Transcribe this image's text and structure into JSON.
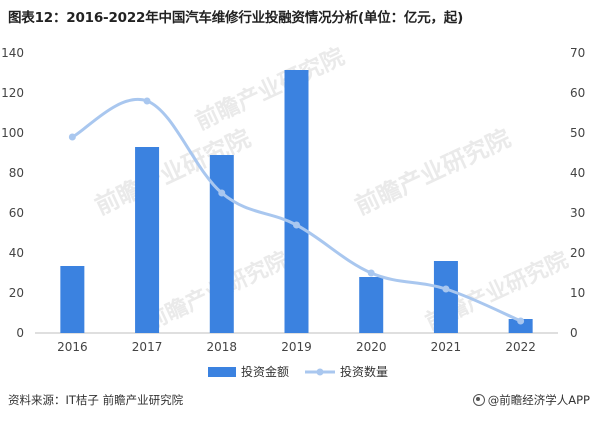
{
  "title": "图表12：2016-2022年中国汽车维修行业投融资情况分析(单位：亿元，起)",
  "source": "资料来源：IT桔子 前瞻产业研究院",
  "brand": "@前瞻经济学人APP",
  "watermark": "前瞻产业研究院",
  "colors": {
    "bar": "#3b82e0",
    "line": "#a9c7ef",
    "axis": "#bfbfbf",
    "text": "#444444"
  },
  "chart_data": {
    "type": "bar",
    "categories": [
      "2016",
      "2017",
      "2018",
      "2019",
      "2020",
      "2021",
      "2022"
    ],
    "series": [
      {
        "name": "投资金额",
        "type": "bar",
        "axis": "left",
        "values": [
          33.5,
          93,
          89,
          131.5,
          28,
          36,
          7
        ]
      },
      {
        "name": "投资数量",
        "type": "line",
        "axis": "right",
        "smooth": true,
        "values": [
          49,
          58,
          35,
          27,
          15,
          11,
          3
        ]
      }
    ],
    "y_left": {
      "min": 0,
      "max": 140,
      "ticks": [
        "0",
        "20",
        "40",
        "60",
        "80",
        "100",
        "120",
        "140"
      ]
    },
    "y_right": {
      "min": 0,
      "max": 70,
      "ticks": [
        "0",
        "10",
        "20",
        "30",
        "40",
        "50",
        "60",
        "70"
      ]
    },
    "legend_position": "bottom-center",
    "grid": false
  }
}
